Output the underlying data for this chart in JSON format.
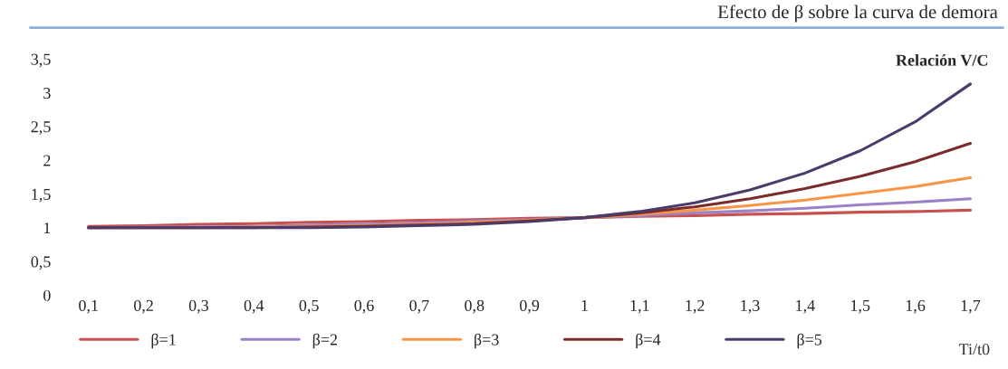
{
  "chart_data": {
    "type": "line",
    "title": "Efecto de β sobre la curva de demora",
    "annotations": [
      "Relación V/C",
      "Ti/t0"
    ],
    "categories": [
      "0,1",
      "0,2",
      "0,3",
      "0,4",
      "0,5",
      "0,6",
      "0,7",
      "0,8",
      "0,9",
      "1",
      "1,1",
      "1,2",
      "1,3",
      "1,4",
      "1,5",
      "1,6",
      "1,7"
    ],
    "series": [
      {
        "name": "β=1",
        "color": "#c9504f",
        "values": [
          1.02,
          1.03,
          1.05,
          1.06,
          1.08,
          1.09,
          1.11,
          1.12,
          1.14,
          1.15,
          1.17,
          1.18,
          1.2,
          1.21,
          1.23,
          1.24,
          1.26
        ]
      },
      {
        "name": "β=2",
        "color": "#9b82c8",
        "values": [
          1.0,
          1.01,
          1.01,
          1.02,
          1.04,
          1.05,
          1.07,
          1.1,
          1.12,
          1.15,
          1.18,
          1.22,
          1.25,
          1.29,
          1.34,
          1.38,
          1.43
        ]
      },
      {
        "name": "β=3",
        "color": "#f79646",
        "values": [
          1.0,
          1.0,
          1.0,
          1.01,
          1.02,
          1.03,
          1.05,
          1.08,
          1.11,
          1.15,
          1.2,
          1.26,
          1.33,
          1.41,
          1.51,
          1.61,
          1.74
        ]
      },
      {
        "name": "β=4",
        "color": "#7a2c2c",
        "values": [
          1.0,
          1.0,
          1.0,
          1.0,
          1.01,
          1.02,
          1.04,
          1.06,
          1.1,
          1.15,
          1.22,
          1.31,
          1.43,
          1.58,
          1.76,
          1.98,
          2.25
        ]
      },
      {
        "name": "β=5",
        "color": "#4b3b6b",
        "values": [
          1.0,
          1.0,
          1.0,
          1.0,
          1.0,
          1.01,
          1.03,
          1.05,
          1.09,
          1.15,
          1.24,
          1.37,
          1.56,
          1.81,
          2.14,
          2.57,
          3.13
        ]
      }
    ],
    "ylim": [
      0,
      3.5
    ],
    "yticks": [
      0,
      {
        "value": 0.5,
        "label": "0,5"
      },
      1,
      {
        "value": 1.5,
        "label": "1,5"
      },
      2,
      {
        "value": 2.5,
        "label": "2,5"
      },
      3,
      {
        "value": 3.5,
        "label": "3,5"
      }
    ],
    "grid": false,
    "legend": "bottom",
    "marker": "none",
    "line_style": "solid"
  }
}
